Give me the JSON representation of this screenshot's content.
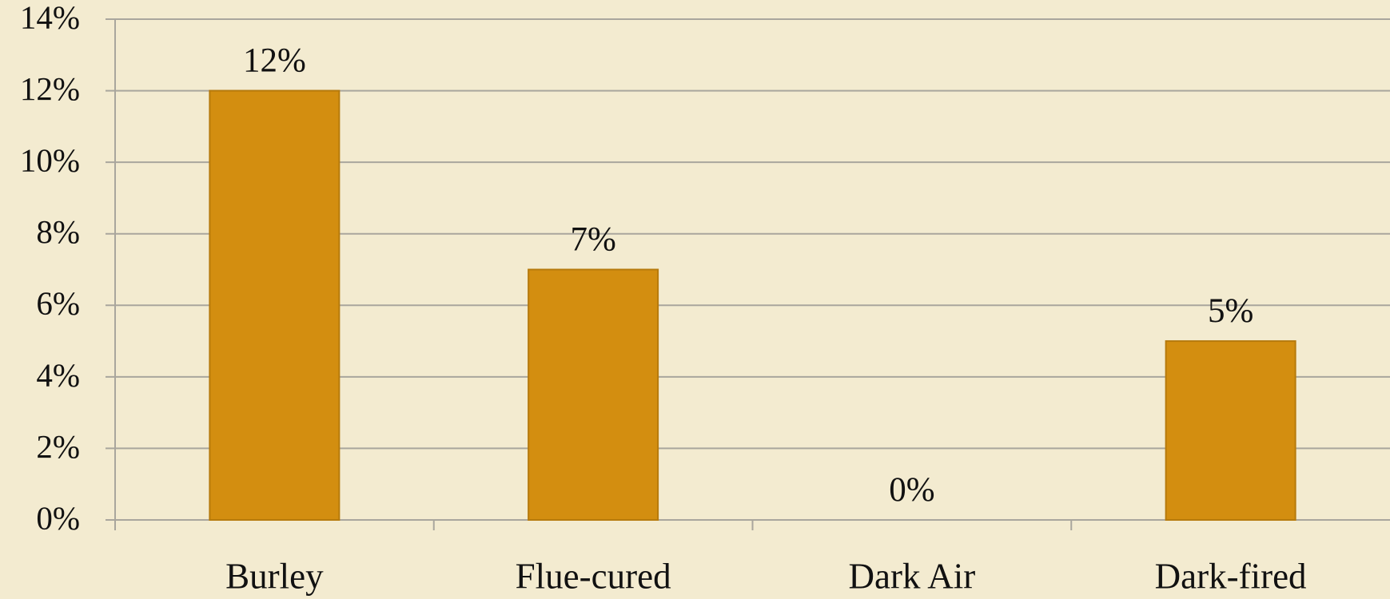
{
  "chart_data": {
    "type": "bar",
    "categories": [
      "Burley",
      "Flue-cured",
      "Dark Air",
      "Dark-fired"
    ],
    "values": [
      12,
      7,
      0,
      5
    ],
    "value_labels": [
      "12%",
      "7%",
      "0%",
      "5%"
    ],
    "color": "#d38e10",
    "ylim": [
      0,
      14
    ],
    "yticks": [
      {
        "value": 0,
        "label": "0%"
      },
      {
        "value": 2,
        "label": "2%"
      },
      {
        "value": 4,
        "label": "4%"
      },
      {
        "value": 6,
        "label": "6%"
      },
      {
        "value": 8,
        "label": "8%"
      },
      {
        "value": 10,
        "label": "10%"
      },
      {
        "value": 12,
        "label": "12%"
      },
      {
        "value": 14,
        "label": "14%"
      }
    ],
    "grid": true
  }
}
